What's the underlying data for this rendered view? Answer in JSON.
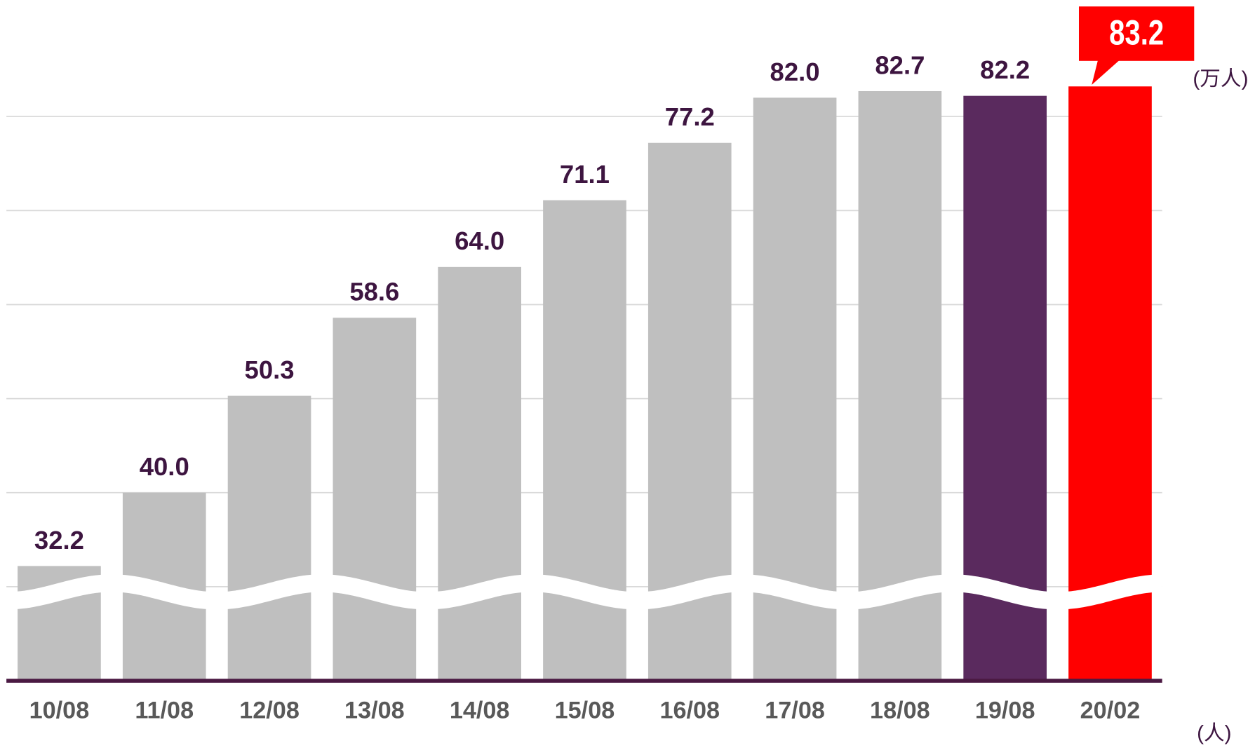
{
  "chart_data": {
    "type": "bar",
    "categories": [
      "10/08",
      "11/08",
      "12/08",
      "13/08",
      "14/08",
      "15/08",
      "16/08",
      "17/08",
      "18/08",
      "19/08",
      "20/02"
    ],
    "values": [
      32.2,
      40.0,
      50.3,
      58.6,
      64.0,
      71.1,
      77.2,
      82.0,
      82.7,
      82.2,
      83.2
    ],
    "value_labels": [
      "32.2",
      "40.0",
      "50.3",
      "58.6",
      "64.0",
      "71.1",
      "77.2",
      "82.0",
      "82.7",
      "82.2",
      "83.2"
    ],
    "colors": [
      "#bfbfbf",
      "#bfbfbf",
      "#bfbfbf",
      "#bfbfbf",
      "#bfbfbf",
      "#bfbfbf",
      "#bfbfbf",
      "#bfbfbf",
      "#bfbfbf",
      "#5a2a5e",
      "#ff0000"
    ],
    "ylim": [
      20,
      90
    ],
    "yticks": [
      30,
      40,
      50,
      60,
      70,
      80
    ],
    "grid": true,
    "y_unit": "(万人)",
    "x_unit": "(人)"
  }
}
